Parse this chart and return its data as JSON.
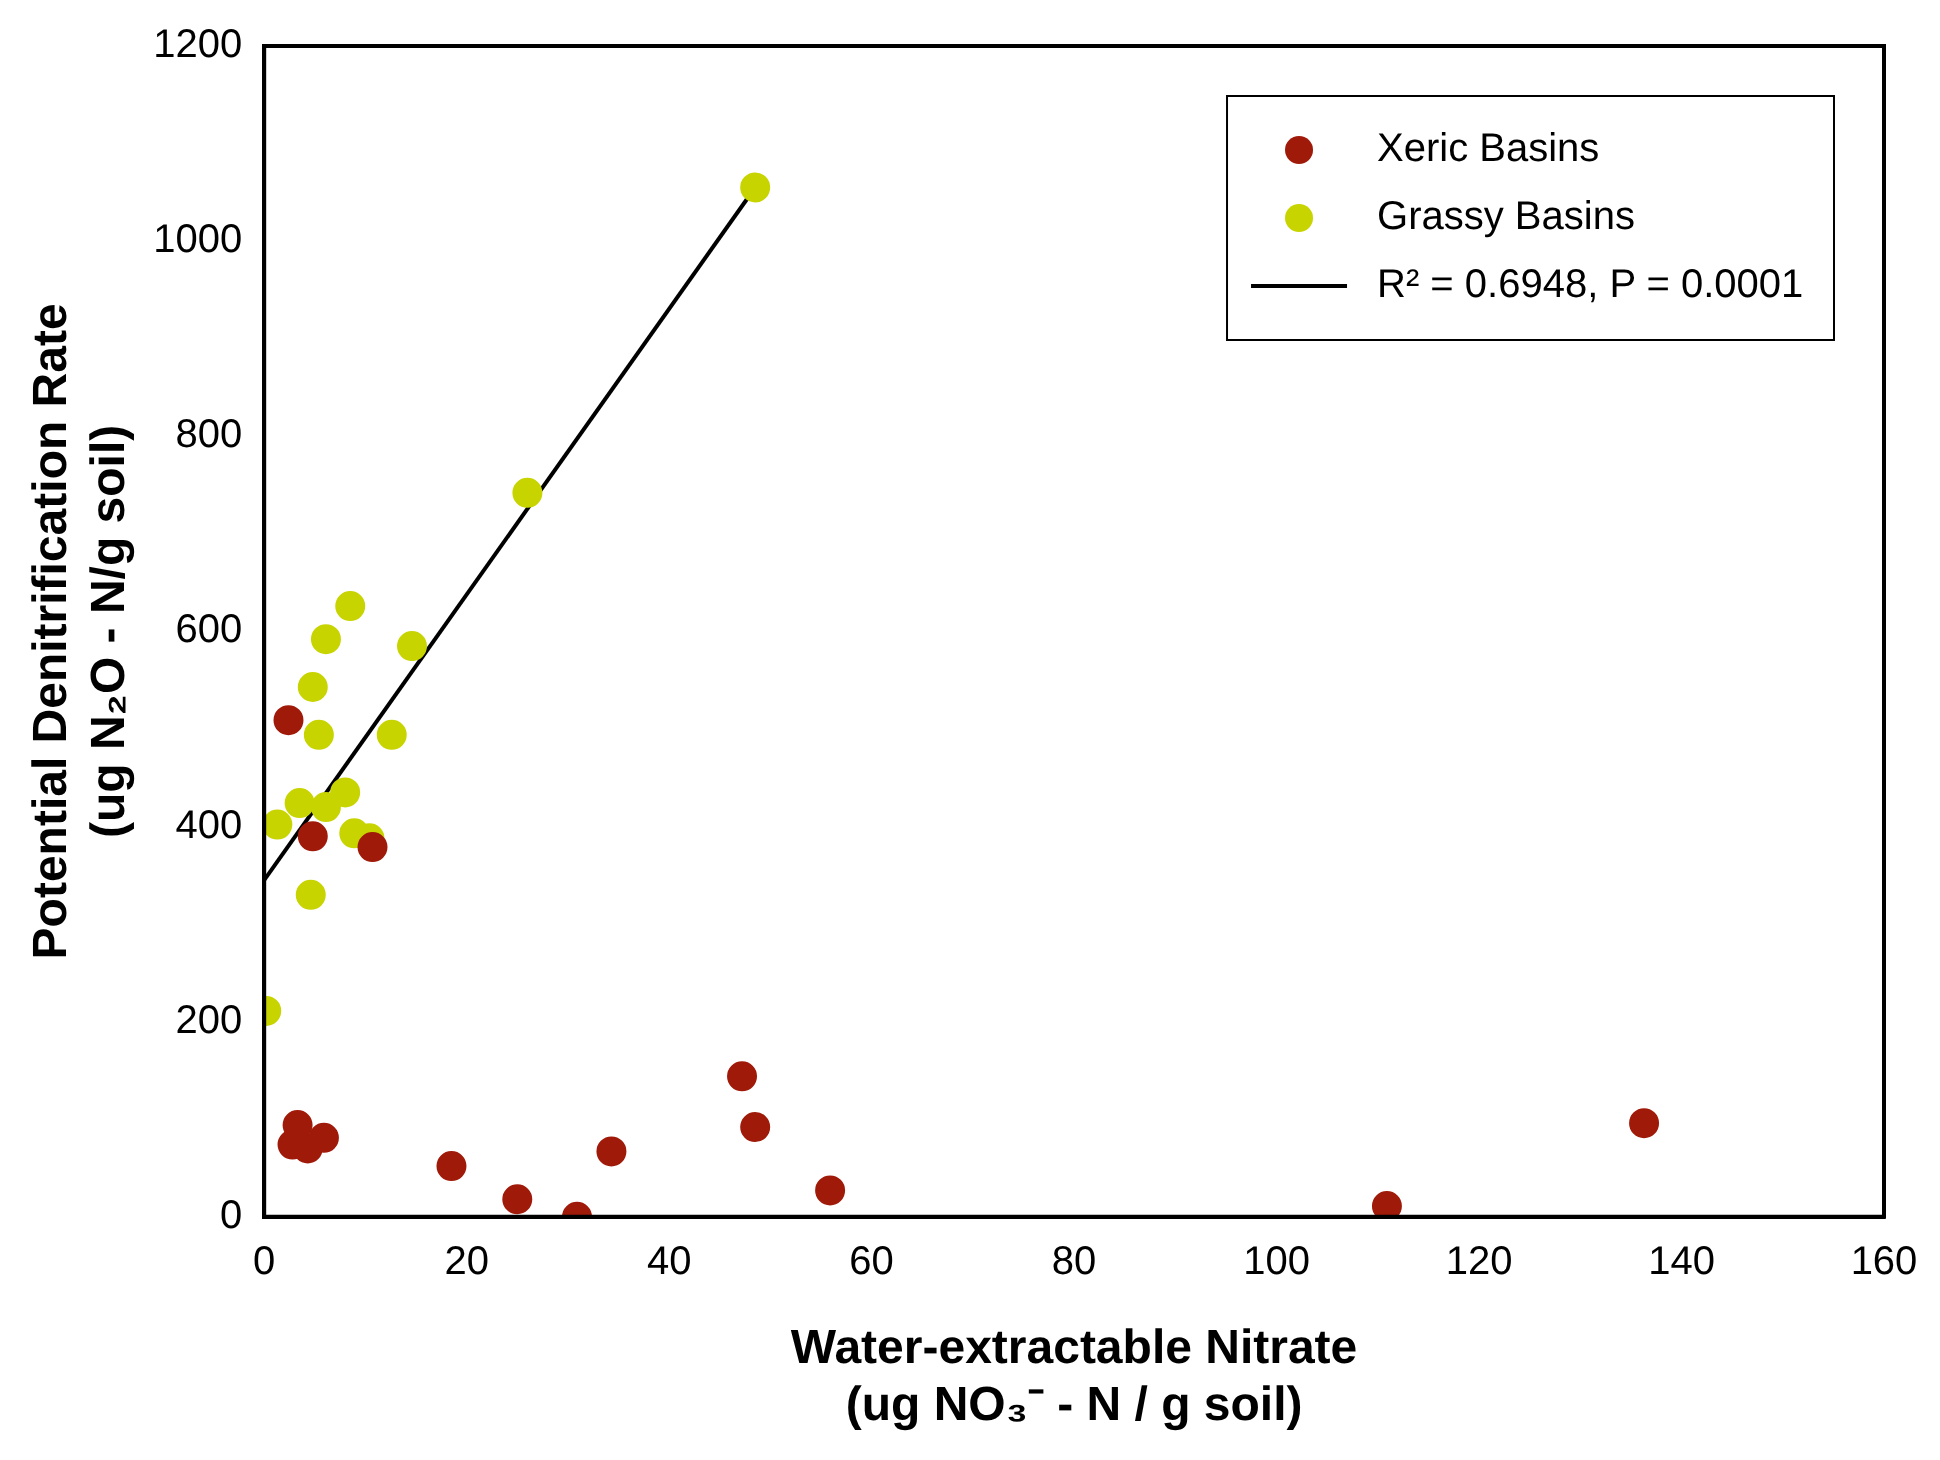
{
  "chart_data": {
    "type": "scatter",
    "xlabel": "Water-extractable Nitrate\n(ug NO₃⁻ - N / g soil)",
    "ylabel": "Potential Denitrification Rate\n(ug N₂O - N/g soil)",
    "xlim": [
      0,
      160
    ],
    "xticks": [
      0,
      20,
      40,
      60,
      80,
      100,
      120,
      140,
      160
    ],
    "ylim": [
      0,
      1200
    ],
    "yticks": [
      0,
      200,
      400,
      600,
      800,
      1000,
      1200
    ],
    "grid": false,
    "legend": "top right",
    "marker": "circle",
    "series": [
      {
        "name": "Xeric Basins",
        "color": "#a01a0a",
        "x": [
          3.3,
          2.8,
          4.3,
          5.9,
          18.5,
          25,
          30.9,
          34.3,
          47.2,
          48.5,
          55.9,
          110.9,
          136.3,
          2.4,
          4.8,
          10.7
        ],
        "values": [
          94,
          74,
          70,
          81,
          52,
          18,
          0,
          67,
          144,
          92,
          27,
          11,
          96,
          509,
          390,
          379
        ]
      },
      {
        "name": "Grassy Basins",
        "color": "#c8d400",
        "x": [
          8.5,
          6.1,
          14.6,
          4.8,
          5.4,
          12.6,
          8.0,
          3.5,
          6.1,
          1.3,
          8.9,
          10.4,
          4.6,
          0.2,
          48.5,
          26
        ],
        "values": [
          626,
          592,
          585,
          543,
          494,
          494,
          435,
          424,
          420,
          402,
          393,
          388,
          330,
          211,
          1055,
          742
        ]
      },
      {
        "name": "R² = 0.6948, P = 0.0001",
        "type": "line",
        "marker": "none",
        "color": "#000000",
        "x": [
          0,
          48.5
        ],
        "values": [
          345,
          1055
        ]
      }
    ]
  }
}
